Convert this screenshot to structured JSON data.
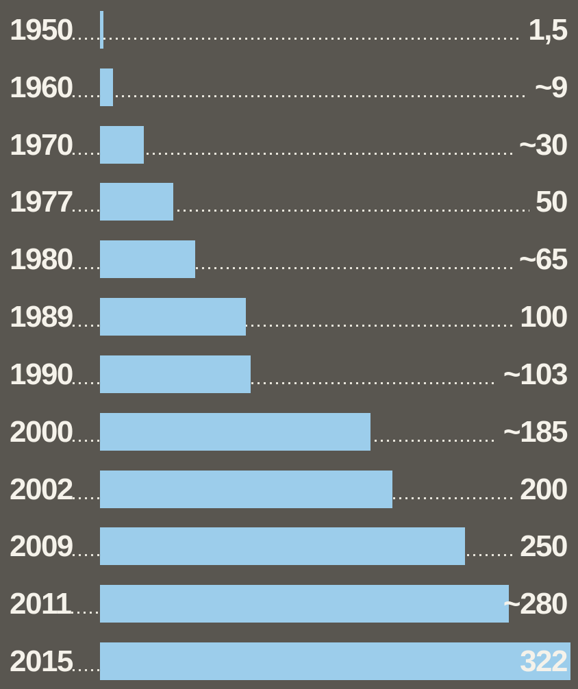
{
  "chart_data": {
    "type": "bar",
    "orientation": "horizontal",
    "title": "",
    "xlabel": "",
    "ylabel": "",
    "categories": [
      "1950",
      "1960",
      "1970",
      "1977",
      "1980",
      "1989",
      "1990",
      "2000",
      "2002",
      "2009",
      "2011",
      "2015"
    ],
    "values": [
      1.5,
      9,
      30,
      50,
      65,
      100,
      103,
      185,
      200,
      250,
      280,
      322
    ],
    "value_labels": [
      "1,5",
      "~9",
      "~30",
      "50",
      "~65",
      "100",
      "~103",
      "~185",
      "200",
      "250",
      "~280",
      "322"
    ],
    "xlim": [
      0,
      322
    ],
    "grid": false,
    "legend": false,
    "leader_style": "dotted"
  },
  "style": {
    "background_color": "#595650",
    "bar_color": "#9ccdeb",
    "text_color": "#f5f2ea",
    "dot_color": "#e9e6dc"
  }
}
